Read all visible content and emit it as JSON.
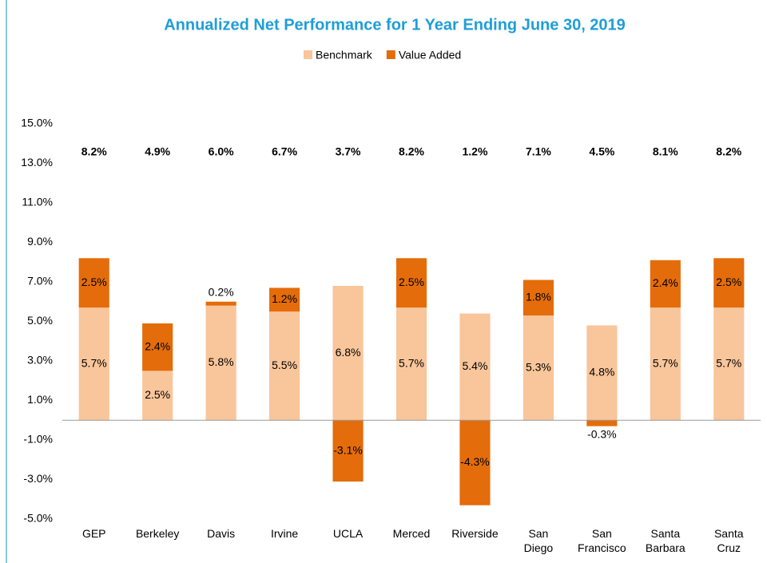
{
  "chart_data": {
    "type": "stacked_bar",
    "title": "Annualized Net Performance for 1 Year Ending June 30, 2019",
    "categories": [
      "GEP",
      "Berkeley",
      "Davis",
      "Irvine",
      "UCLA",
      "Merced",
      "Riverside",
      "San Diego",
      "San Francisco",
      "Santa Barbara",
      "Santa Cruz"
    ],
    "series": [
      {
        "name": "Benchmark",
        "color": "#f9c59a",
        "values": [
          5.7,
          2.5,
          5.8,
          5.5,
          6.8,
          5.7,
          5.4,
          5.3,
          4.8,
          5.7,
          5.7
        ],
        "value_labels": [
          "5.7%",
          "2.5%",
          "5.8%",
          "5.5%",
          "6.8%",
          "5.7%",
          "5.4%",
          "5.3%",
          "4.8%",
          "5.7%",
          "5.7%"
        ]
      },
      {
        "name": "Value Added",
        "color": "#e46c0a",
        "values": [
          2.5,
          2.4,
          0.2,
          1.2,
          -3.1,
          2.5,
          -4.3,
          1.8,
          -0.3,
          2.4,
          2.5
        ],
        "value_labels": [
          "2.5%",
          "2.4%",
          "0.2%",
          "1.2%",
          "-3.1%",
          "2.5%",
          "-4.3%",
          "1.8%",
          "-0.3%",
          "2.4%",
          "2.5%"
        ]
      }
    ],
    "totals": {
      "values": [
        8.2,
        4.9,
        6.0,
        6.7,
        3.7,
        8.2,
        1.2,
        7.1,
        4.5,
        8.1,
        8.2
      ],
      "value_labels": [
        "8.2%",
        "4.9%",
        "6.0%",
        "6.7%",
        "3.7%",
        "8.2%",
        "1.2%",
        "7.1%",
        "4.5%",
        "8.1%",
        "8.2%"
      ]
    },
    "ylim": [
      -5,
      15
    ],
    "yticks": [
      {
        "value": -5,
        "label": "-5.0%"
      },
      {
        "value": -3,
        "label": "-3.0%"
      },
      {
        "value": -1,
        "label": "-1.0%"
      },
      {
        "value": 1,
        "label": "1.0%"
      },
      {
        "value": 3,
        "label": "3.0%"
      },
      {
        "value": 5,
        "label": "5.0%"
      },
      {
        "value": 7,
        "label": "7.0%"
      },
      {
        "value": 9,
        "label": "9.0%"
      },
      {
        "value": 11,
        "label": "11.0%"
      },
      {
        "value": 13,
        "label": "13.0%"
      },
      {
        "value": 15,
        "label": "15.0%"
      }
    ],
    "legend": "top",
    "grid": false
  }
}
